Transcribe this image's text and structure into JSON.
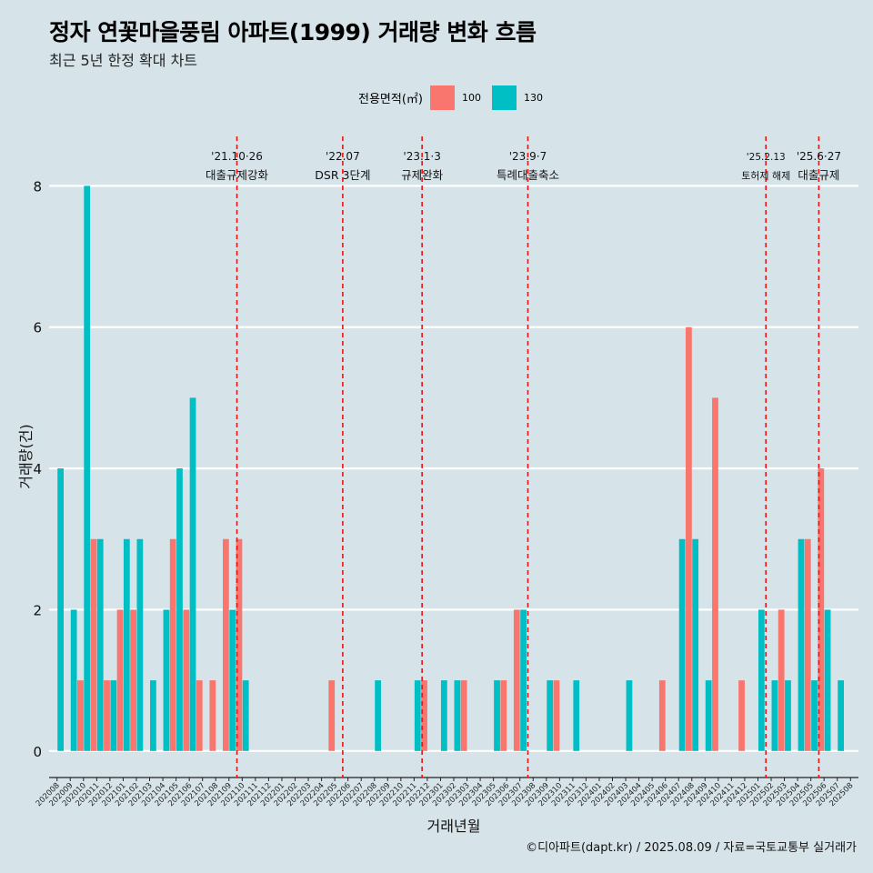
{
  "title": "정자 연꽃마을풍림 아파트(1999) 거래량 변화 흐름",
  "subtitle": "최근 5년 한정 확대 차트",
  "caption": "©디아파트(dapt.kr) / 2025.08.09 / 자료=국토교통부 실거래가",
  "legend": {
    "title": "전용면적(㎡)",
    "items": [
      {
        "label": "100",
        "color": "#f8766d"
      },
      {
        "label": "130",
        "color": "#00bfc4"
      }
    ]
  },
  "chart_data": {
    "type": "bar",
    "title": "정자 연꽃마을풍림 아파트(1999) 거래량 변화 흐름",
    "xlabel": "거래년월",
    "ylabel": "거래량(건)",
    "ylim": [
      -0.35,
      8.7
    ],
    "yticks": [
      0,
      2,
      4,
      6,
      8
    ],
    "categories": [
      "202008",
      "202009",
      "202010",
      "202011",
      "202012",
      "202101",
      "202102",
      "202103",
      "202104",
      "202105",
      "202106",
      "202107",
      "202108",
      "202109",
      "202110",
      "202111",
      "202112",
      "202201",
      "202202",
      "202203",
      "202204",
      "202205",
      "202206",
      "202207",
      "202208",
      "202209",
      "202210",
      "202211",
      "202212",
      "202301",
      "202302",
      "202303",
      "202304",
      "202305",
      "202306",
      "202307",
      "202308",
      "202309",
      "202310",
      "202311",
      "202312",
      "202401",
      "202402",
      "202403",
      "202404",
      "202405",
      "202406",
      "202407",
      "202408",
      "202409",
      "202410",
      "202411",
      "202412",
      "202501",
      "202502",
      "202503",
      "202504",
      "202505",
      "202506",
      "202507",
      "202508"
    ],
    "series": [
      {
        "name": "100",
        "color": "#f8766d",
        "values": [
          0,
          0,
          1,
          3,
          1,
          2,
          2,
          0,
          0,
          3,
          2,
          1,
          1,
          3,
          3,
          0,
          0,
          0,
          0,
          0,
          0,
          1,
          0,
          0,
          0,
          0,
          0,
          0,
          1,
          0,
          0,
          1,
          0,
          0,
          1,
          2,
          0,
          0,
          1,
          0,
          0,
          0,
          0,
          0,
          0,
          0,
          1,
          0,
          6,
          0,
          5,
          0,
          1,
          0,
          0,
          2,
          0,
          3,
          4,
          0,
          0
        ]
      },
      {
        "name": "130",
        "color": "#00bfc4",
        "values": [
          4,
          2,
          8,
          3,
          1,
          3,
          3,
          1,
          2,
          4,
          5,
          0,
          0,
          2,
          1,
          0,
          0,
          0,
          0,
          0,
          0,
          0,
          0,
          0,
          1,
          0,
          0,
          1,
          0,
          1,
          1,
          0,
          0,
          1,
          0,
          2,
          0,
          1,
          0,
          1,
          0,
          0,
          0,
          1,
          0,
          0,
          0,
          3,
          3,
          1,
          0,
          0,
          0,
          2,
          1,
          1,
          3,
          1,
          2,
          1,
          0
        ]
      }
    ],
    "events": [
      {
        "after": "202110",
        "date": "'21.10·26",
        "label": "대출규제강화"
      },
      {
        "after": "202206",
        "date": "'22.07",
        "label": "DSR 3단계"
      },
      {
        "after": "202212",
        "date": "'23.1·3",
        "label": "규제완화"
      },
      {
        "after": "202308",
        "date": "'23.9·7",
        "label": "특례대출축소"
      },
      {
        "after": "202502",
        "date": "'25.2.13",
        "label": "토허제 해제"
      },
      {
        "after": "202506",
        "date": "'25.6·27",
        "label": "대출규제"
      }
    ]
  }
}
